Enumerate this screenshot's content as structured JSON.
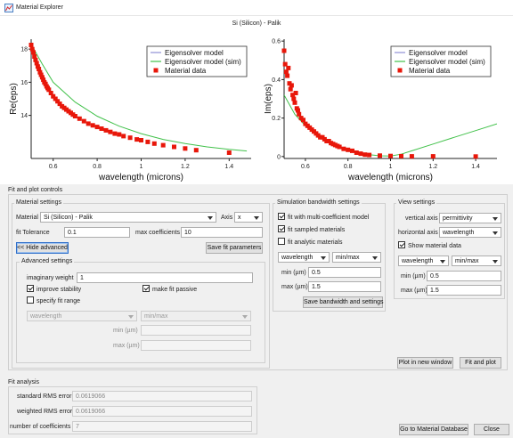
{
  "window": {
    "title": "Material Explorer",
    "icon": "material-explorer-app-icon"
  },
  "plot_title": "Si (Silicon) - Palik",
  "legend": {
    "eigensolver": "Eigensolver model",
    "eigensolver_sim": "Eigensolver model (sim)",
    "material_data": "Material data"
  },
  "colors": {
    "eigensolver": "#8e8ed6",
    "sim": "#41c14a",
    "data": "#e8170a"
  },
  "chart_data": [
    {
      "type": "scatter",
      "ylabel": "Re(eps)",
      "xlabel": "wavelength (microns)",
      "xlim": [
        0.5,
        1.5
      ],
      "ylim": [
        11.4,
        18.6
      ],
      "xticks": [
        "0.6",
        "0.8",
        "1",
        "1.2",
        "1.4"
      ],
      "yticks": [
        "18",
        "16",
        "14"
      ],
      "ytick_values": [
        18,
        16,
        14
      ],
      "series": [
        {
          "name": "Eigensolver model (sim)",
          "kind": "line",
          "x": [
            0.5,
            0.55,
            0.6,
            0.7,
            0.8,
            0.9,
            1.0,
            1.1,
            1.2,
            1.3,
            1.4,
            1.48
          ],
          "y": [
            18.3,
            17.1,
            16.0,
            14.8,
            13.95,
            13.35,
            12.9,
            12.55,
            12.3,
            12.1,
            11.95,
            11.85
          ]
        },
        {
          "name": "Material data",
          "kind": "points",
          "x": [
            0.5,
            0.505,
            0.51,
            0.515,
            0.52,
            0.525,
            0.53,
            0.535,
            0.54,
            0.545,
            0.55,
            0.555,
            0.56,
            0.565,
            0.57,
            0.575,
            0.58,
            0.59,
            0.6,
            0.61,
            0.62,
            0.63,
            0.64,
            0.65,
            0.66,
            0.67,
            0.68,
            0.69,
            0.7,
            0.72,
            0.74,
            0.76,
            0.78,
            0.8,
            0.82,
            0.84,
            0.86,
            0.88,
            0.9,
            0.92,
            0.95,
            0.98,
            1.0,
            1.03,
            1.06,
            1.1,
            1.15,
            1.2,
            1.25,
            1.4
          ],
          "y": [
            18.25,
            18.0,
            17.8,
            17.55,
            17.35,
            17.15,
            16.95,
            16.8,
            16.6,
            16.45,
            16.3,
            16.15,
            16.0,
            15.9,
            15.75,
            15.65,
            15.55,
            15.35,
            15.15,
            15.0,
            14.85,
            14.7,
            14.55,
            14.45,
            14.35,
            14.25,
            14.15,
            14.05,
            13.95,
            13.8,
            13.65,
            13.5,
            13.4,
            13.3,
            13.2,
            13.1,
            13.0,
            12.9,
            12.85,
            12.75,
            12.65,
            12.55,
            12.5,
            12.4,
            12.3,
            12.2,
            12.1,
            12.0,
            11.9,
            11.75
          ]
        }
      ]
    },
    {
      "type": "scatter",
      "ylabel": "Im(eps)",
      "xlabel": "wavelength (microns)",
      "xlim": [
        0.5,
        1.5
      ],
      "ylim": [
        -0.01,
        0.61
      ],
      "xticks": [
        "0.6",
        "0.8",
        "1",
        "1.2",
        "1.4"
      ],
      "yticks": [
        "0.6",
        "0.4",
        "0.2",
        "0"
      ],
      "ytick_values": [
        0.6,
        0.4,
        0.2,
        0.0
      ],
      "series": [
        {
          "name": "Eigensolver model (sim)",
          "kind": "line",
          "x": [
            0.5,
            0.55,
            0.6,
            0.65,
            0.7,
            0.75,
            0.8,
            0.85,
            0.9,
            0.95,
            1.0,
            1.05,
            1.1,
            1.2,
            1.3,
            1.4,
            1.5
          ],
          "y": [
            0.32,
            0.22,
            0.16,
            0.115,
            0.08,
            0.055,
            0.035,
            0.02,
            0.01,
            0.004,
            0.003,
            0.012,
            0.03,
            0.065,
            0.1,
            0.135,
            0.17
          ]
        },
        {
          "name": "Material data",
          "kind": "points",
          "x": [
            0.5,
            0.505,
            0.51,
            0.515,
            0.52,
            0.525,
            0.53,
            0.535,
            0.54,
            0.545,
            0.55,
            0.555,
            0.56,
            0.565,
            0.57,
            0.58,
            0.59,
            0.6,
            0.61,
            0.62,
            0.63,
            0.64,
            0.65,
            0.66,
            0.67,
            0.68,
            0.69,
            0.7,
            0.71,
            0.72,
            0.73,
            0.74,
            0.75,
            0.76,
            0.78,
            0.8,
            0.82,
            0.84,
            0.86,
            0.88,
            0.9,
            0.95,
            1.0,
            1.05,
            1.1,
            1.2,
            1.4
          ],
          "y": [
            0.55,
            0.48,
            0.44,
            0.42,
            0.46,
            0.38,
            0.35,
            0.37,
            0.32,
            0.3,
            0.28,
            0.33,
            0.25,
            0.24,
            0.22,
            0.2,
            0.19,
            0.17,
            0.16,
            0.15,
            0.14,
            0.13,
            0.12,
            0.11,
            0.1,
            0.1,
            0.09,
            0.08,
            0.08,
            0.07,
            0.065,
            0.06,
            0.055,
            0.05,
            0.04,
            0.035,
            0.03,
            0.02,
            0.015,
            0.01,
            0.008,
            0.005,
            0.003,
            0.002,
            0.001,
            0.001,
            0.0
          ]
        }
      ]
    }
  ],
  "fit_plot_controls": {
    "title": "Fit and plot controls",
    "material_settings": {
      "title": "Material settings",
      "material_label": "Material",
      "material_value": "Si (Silicon) - Palik",
      "axis_label": "Axis",
      "axis_value": "x",
      "fit_tolerance_label": "fit Tolerance",
      "fit_tolerance_value": "0.1",
      "max_coefficients_label": "max coefficients",
      "max_coefficients_value": "10",
      "hide_advanced_label": "<< Hide advanced",
      "save_fit_label": "Save fit parameters"
    },
    "advanced": {
      "title": "Advanced settings",
      "imaginary_weight_label": "imaginary weight",
      "imaginary_weight_value": "1",
      "improve_stability_label": "improve stability",
      "make_fit_passive_label": "make fit passive",
      "specify_fit_range_label": "specify fit range",
      "wavelength_value": "wavelength",
      "minmax_value": "min/max",
      "min_label": "min (µm)",
      "max_label": "max (µm)"
    },
    "simulation": {
      "title": "Simulation bandwidth settings",
      "multi_coeff_label": "fit with multi-coefficient model",
      "sampled_label": "fit sampled materials",
      "analytic_label": "fit analytic materials",
      "wavelength_value": "wavelength",
      "minmax_value": "min/max",
      "min_label": "min (µm)",
      "min_value": "0.5",
      "max_label": "max (µm)",
      "max_value": "1.5",
      "save_label": "Save bandwidth and settings"
    },
    "view": {
      "title": "View settings",
      "vertical_axis_label": "vertical axis",
      "vertical_axis_value": "permittivity",
      "horizontal_axis_label": "horizontal axis",
      "horizontal_axis_value": "wavelength",
      "show_material_label": "Show material data",
      "wavelength_value": "wavelength",
      "minmax_value": "min/max",
      "min_label": "min (µm)",
      "min_value": "0.5",
      "max_label": "max (µm)",
      "max_value": "1.5"
    },
    "plot_new_window_label": "Plot in new window",
    "fit_and_plot_label": "Fit and plot"
  },
  "fit_analysis": {
    "title": "Fit analysis",
    "std_rms_label": "standard RMS error",
    "std_rms_value": "0.0619066",
    "weighted_rms_label": "weighted RMS error",
    "weighted_rms_value": "0.0619066",
    "num_coeff_label": "number of coefficients",
    "num_coeff_value": "7"
  },
  "footer": {
    "go_to_db_label": "Go to Material Database",
    "close_label": "Close"
  }
}
